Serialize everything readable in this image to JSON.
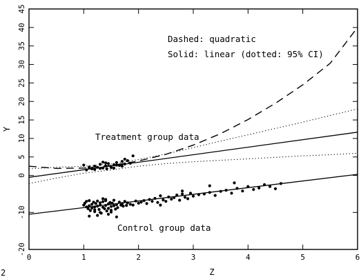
{
  "chart_data": {
    "type": "scatter",
    "xlabel": "Z",
    "ylabel": "Y",
    "xlim": [
      0,
      6
    ],
    "ylim": [
      -20,
      45
    ],
    "xticks": [
      0,
      1,
      2,
      3,
      4,
      5,
      6
    ],
    "yticks": [
      -20,
      -10,
      0,
      5,
      10,
      15,
      20,
      25,
      30,
      35,
      40,
      45
    ],
    "ytick_labels": [
      "-20",
      "-10",
      "0",
      "5",
      "10",
      "15",
      "20",
      "25",
      "30",
      "35",
      "40",
      "45"
    ],
    "annotations": {
      "dashed_note": "Dashed: quadratic",
      "solid_note": "Solid: linear (dotted: 95% CI)",
      "treatment_label": "Treatment group data",
      "control_label": "Control group data",
      "corner_mark": "2"
    },
    "lines": {
      "treatment_linear": {
        "style": "solid",
        "x": [
          0,
          6
        ],
        "y": [
          -0.5,
          11.7
        ]
      },
      "control_linear": {
        "style": "solid",
        "x": [
          0,
          6
        ],
        "y": [
          -10.5,
          0.3
        ]
      },
      "quadratic": {
        "style": "dashed",
        "x": [
          0,
          0.5,
          1,
          1.5,
          2,
          2.5,
          3,
          3.5,
          4,
          4.5,
          5,
          5.5,
          6
        ],
        "y": [
          2.5,
          1.9,
          2.0,
          2.7,
          3.9,
          5.7,
          8.2,
          11.3,
          15.1,
          19.5,
          24.5,
          30.3,
          40.0
        ]
      },
      "ci_upper": {
        "style": "dotted",
        "x": [
          0,
          0.5,
          1,
          1.5,
          2,
          2.5,
          3,
          3.5,
          4,
          4.5,
          5,
          5.5,
          6
        ],
        "y": [
          1.8,
          2.2,
          2.5,
          3.1,
          4.3,
          5.8,
          7.5,
          9.3,
          11.0,
          12.7,
          14.4,
          16.2,
          18.0
        ]
      },
      "ci_lower": {
        "style": "dotted",
        "x": [
          0,
          0.5,
          1,
          1.5,
          2,
          2.5,
          3,
          3.5,
          4,
          4.5,
          5,
          5.5,
          6
        ],
        "y": [
          -2.2,
          -0.7,
          0.6,
          1.5,
          2.5,
          3.2,
          3.7,
          4.1,
          4.5,
          4.9,
          5.3,
          5.6,
          6.0
        ]
      }
    },
    "series": [
      {
        "x": [
          1.0,
          1.05,
          1.1,
          1.15,
          1.2,
          1.25,
          1.3,
          1.35,
          1.4,
          1.42,
          1.45,
          1.5,
          1.55,
          1.6,
          1.65,
          1.7,
          1.75,
          1.8,
          1.85,
          1.9,
          1.2,
          1.3,
          1.4,
          1.5,
          1.6,
          1.7,
          1.1,
          1.35,
          1.55,
          1.75
        ],
        "y": [
          2.8,
          1.5,
          2.0,
          1.8,
          2.5,
          2.2,
          3.0,
          2.0,
          2.6,
          1.8,
          3.2,
          2.4,
          2.9,
          3.5,
          2.7,
          3.8,
          3.1,
          4.0,
          3.3,
          5.3,
          1.6,
          1.9,
          3.4,
          2.1,
          2.8,
          2.5,
          2.3,
          3.6,
          2.0,
          4.4
        ]
      },
      {
        "x": [
          1.0,
          1.02,
          1.05,
          1.05,
          1.08,
          1.1,
          1.1,
          1.12,
          1.15,
          1.15,
          1.18,
          1.2,
          1.2,
          1.22,
          1.25,
          1.25,
          1.28,
          1.3,
          1.3,
          1.32,
          1.35,
          1.35,
          1.38,
          1.4,
          1.4,
          1.42,
          1.45,
          1.45,
          1.48,
          1.5,
          1.5,
          1.52,
          1.55,
          1.55,
          1.58,
          1.6,
          1.62,
          1.65,
          1.68,
          1.7,
          1.72,
          1.75,
          1.78,
          1.8,
          1.85,
          1.9,
          1.95,
          2.0,
          2.05,
          2.1,
          2.15,
          2.2,
          2.25,
          2.3,
          2.35,
          2.4,
          2.45,
          2.5,
          2.55,
          2.6,
          2.65,
          2.7,
          2.75,
          2.8,
          2.85,
          2.9,
          2.95,
          3.0,
          3.1,
          3.2,
          3.3,
          3.4,
          3.5,
          3.6,
          3.7,
          3.8,
          3.9,
          4.0,
          4.1,
          4.2,
          4.3,
          4.4,
          4.5,
          4.6,
          1.1,
          1.2,
          1.3,
          1.4,
          1.5,
          1.6,
          1.25,
          1.35,
          1.45,
          2.4,
          2.8,
          3.3,
          3.75
        ],
        "y": [
          -8.0,
          -7.5,
          -8.5,
          -7.0,
          -9.0,
          -8.2,
          -6.8,
          -9.5,
          -7.8,
          -8.8,
          -7.2,
          -8.5,
          -9.8,
          -7.6,
          -8.3,
          -6.9,
          -9.2,
          -8.0,
          -7.4,
          -10.2,
          -8.6,
          -7.1,
          -9.0,
          -8.1,
          -6.8,
          -9.6,
          -7.7,
          -8.9,
          -7.3,
          -8.4,
          -9.9,
          -7.5,
          -8.2,
          -6.7,
          -9.1,
          -7.9,
          -8.7,
          -7.2,
          -8.0,
          -7.6,
          -8.3,
          -7.0,
          -8.1,
          -7.4,
          -7.8,
          -8.0,
          -6.9,
          -7.5,
          -7.2,
          -6.8,
          -7.6,
          -6.5,
          -7.0,
          -6.2,
          -7.3,
          -5.5,
          -6.6,
          -7.0,
          -5.8,
          -6.4,
          -6.0,
          -5.3,
          -6.7,
          -5.0,
          -5.9,
          -6.3,
          -4.8,
          -5.6,
          -5.2,
          -5.0,
          -4.6,
          -5.4,
          -4.3,
          -4.0,
          -4.8,
          -3.5,
          -4.2,
          -3.0,
          -3.8,
          -3.4,
          -2.5,
          -3.0,
          -3.6,
          -2.2,
          -11.0,
          -9.3,
          -10.0,
          -6.5,
          -9.4,
          -11.2,
          -10.8,
          -6.3,
          -10.5,
          -8.0,
          -4.2,
          -2.8,
          -2.0
        ]
      }
    ]
  }
}
